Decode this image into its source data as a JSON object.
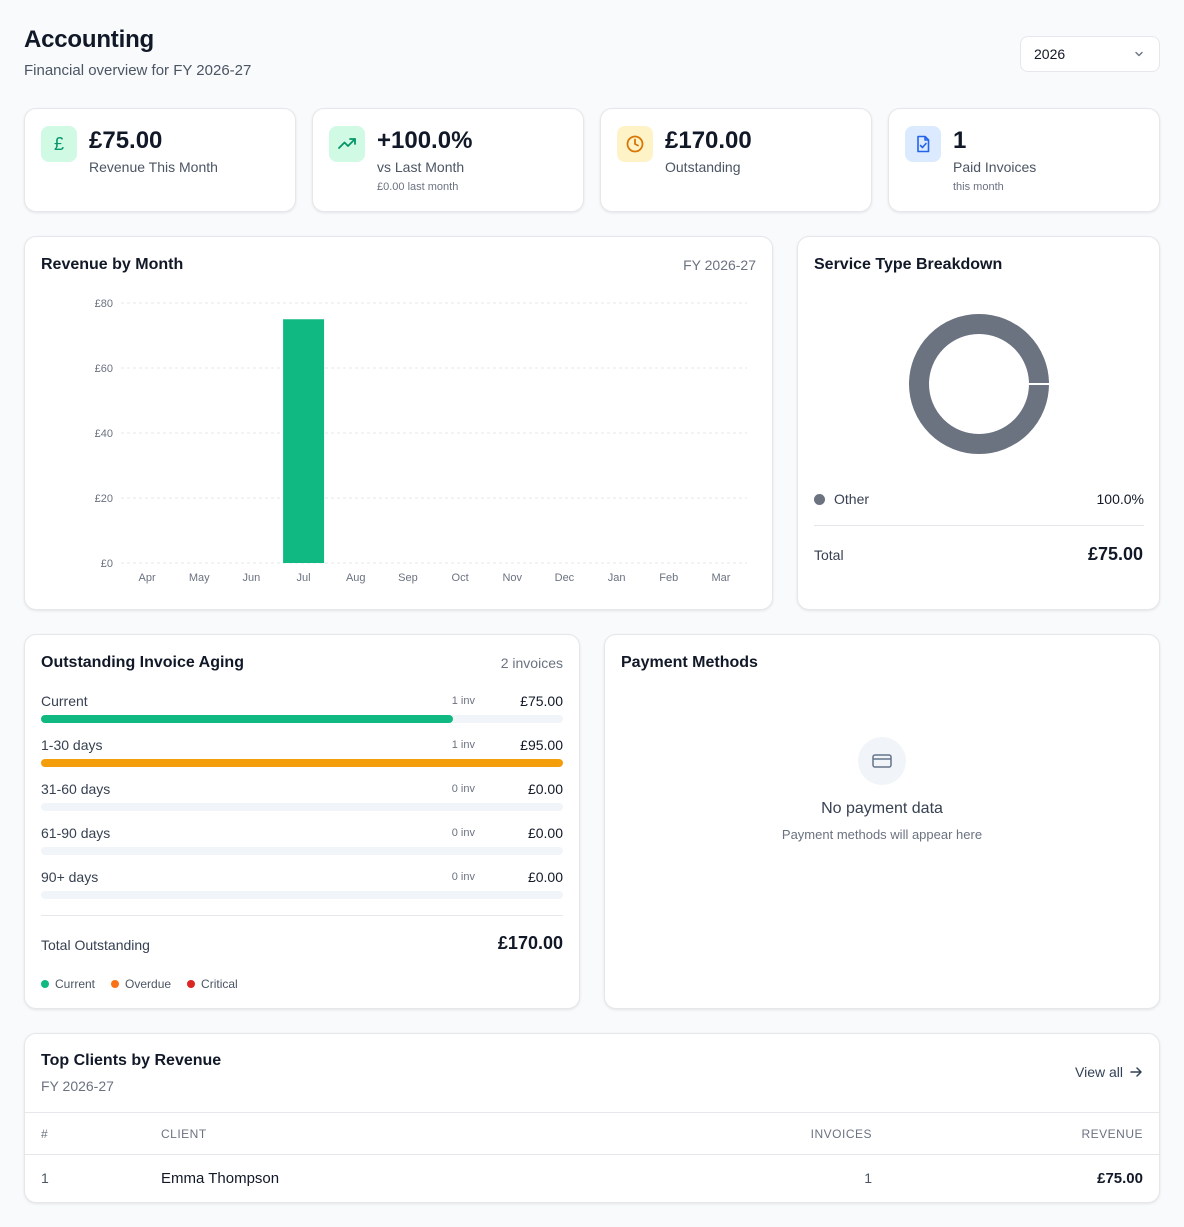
{
  "header": {
    "title": "Accounting",
    "subtitle": "Financial overview for FY 2026-27",
    "year": "2026"
  },
  "kpis": [
    {
      "icon": "pound-icon",
      "value": "£75.00",
      "label": "Revenue This Month",
      "sub": "",
      "icon_bg": "#d1fae5",
      "icon_color": "#059669"
    },
    {
      "icon": "trending-up-icon",
      "value": "+100.0%",
      "label": "vs Last Month",
      "sub": "£0.00 last month",
      "icon_bg": "#d1fae5",
      "icon_color": "#059669"
    },
    {
      "icon": "clock-icon",
      "value": "£170.00",
      "label": "Outstanding",
      "sub": "",
      "icon_bg": "#fef3c7",
      "icon_color": "#d97706"
    },
    {
      "icon": "file-check-icon",
      "value": "1",
      "label": "Paid Invoices",
      "sub": "this month",
      "icon_bg": "#dbeafe",
      "icon_color": "#2563eb"
    }
  ],
  "revenue_card": {
    "title": "Revenue by Month",
    "period": "FY 2026-27"
  },
  "chart_data": {
    "type": "bar",
    "title": "Revenue by Month",
    "categories": [
      "Apr",
      "May",
      "Jun",
      "Jul",
      "Aug",
      "Sep",
      "Oct",
      "Nov",
      "Dec",
      "Jan",
      "Feb",
      "Mar"
    ],
    "values": [
      0,
      0,
      0,
      75,
      0,
      0,
      0,
      0,
      0,
      0,
      0,
      0
    ],
    "ylim": [
      0,
      80
    ],
    "yticks": [
      0,
      20,
      40,
      60,
      80
    ],
    "ytick_labels": [
      "£0",
      "£20",
      "£40",
      "£60",
      "£80"
    ],
    "grid": true,
    "bar_color": "#10b981"
  },
  "service_card": {
    "title": "Service Type Breakdown",
    "slices": [
      {
        "name": "Other",
        "pct_label": "100.0%",
        "value": 100,
        "color": "#6b7280"
      }
    ],
    "total_label": "Total",
    "total_value": "£75.00"
  },
  "aging_card": {
    "title": "Outstanding Invoice Aging",
    "count": "2 invoices",
    "rows": [
      {
        "label": "Current",
        "count": "1 inv",
        "amount": "£75.00",
        "fraction": 0.79,
        "color": "#10b981"
      },
      {
        "label": "1-30 days",
        "count": "1 inv",
        "amount": "£95.00",
        "fraction": 1.0,
        "color": "#f59e0b"
      },
      {
        "label": "31-60 days",
        "count": "0 inv",
        "amount": "£0.00",
        "fraction": 0,
        "color": "#f97316"
      },
      {
        "label": "61-90 days",
        "count": "0 inv",
        "amount": "£0.00",
        "fraction": 0,
        "color": "#ef4444"
      },
      {
        "label": "90+ days",
        "count": "0 inv",
        "amount": "£0.00",
        "fraction": 0,
        "color": "#dc2626"
      }
    ],
    "total_label": "Total Outstanding",
    "total_value": "£170.00",
    "legend": [
      {
        "label": "Current",
        "color": "#10b981"
      },
      {
        "label": "Overdue",
        "color": "#f97316"
      },
      {
        "label": "Critical",
        "color": "#dc2626"
      }
    ]
  },
  "payment_card": {
    "title": "Payment Methods",
    "empty_title": "No payment data",
    "empty_sub": "Payment methods will appear here"
  },
  "clients_card": {
    "title": "Top Clients by Revenue",
    "period": "FY 2026-27",
    "view_all": "View all",
    "columns": [
      "#",
      "CLIENT",
      "INVOICES",
      "REVENUE"
    ],
    "rows": [
      {
        "rank": "1",
        "client": "Emma Thompson",
        "invoices": "1",
        "revenue": "£75.00"
      }
    ]
  }
}
